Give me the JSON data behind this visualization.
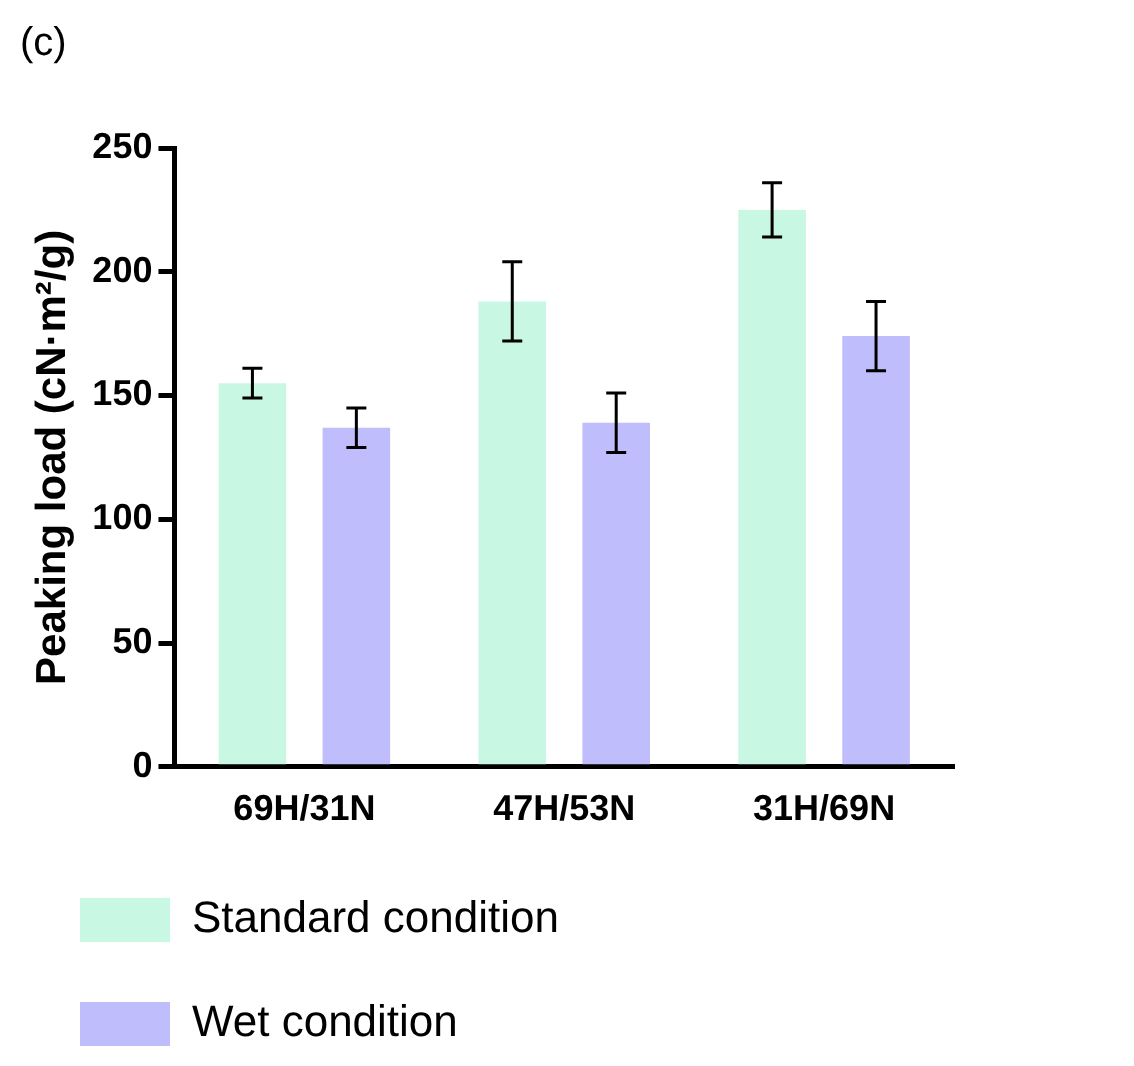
{
  "chart_data": {
    "type": "bar",
    "title": "(c)",
    "ylabel": "Peaking load (cN·m²/g)",
    "categories": [
      "69H/31N",
      "47H/53N",
      "31H/69N"
    ],
    "series": [
      {
        "name": "Standard condition",
        "color": "#c8f7e3",
        "values": [
          155,
          188,
          225
        ],
        "errors": [
          6,
          16,
          11
        ]
      },
      {
        "name": "Wet condition",
        "color": "#bfbdfb",
        "values": [
          137,
          139,
          174
        ],
        "errors": [
          8,
          12,
          14
        ]
      }
    ],
    "ylim": [
      0,
      250
    ],
    "yticks": [
      0,
      50,
      100,
      150,
      200,
      250
    ],
    "grid": false,
    "legend": "bottom"
  }
}
